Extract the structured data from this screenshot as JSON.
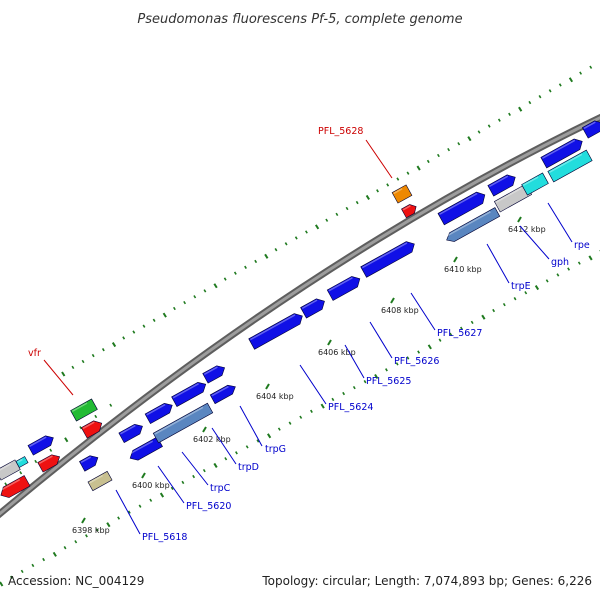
{
  "title": "Pseudomonas fluorescens Pf-5, complete genome",
  "footer": {
    "accession": "Accession: NC_004129",
    "summary": "Topology: circular; Length: 7,074,893 bp; Genes: 6,226"
  },
  "colors": {
    "backbone": "#8a8a8a",
    "tick": "#1f7a1f",
    "cds": "#1010e6",
    "trp_operon": "#5a86c0",
    "gene_label": "#0000cc",
    "highlight_label": "#cc0000",
    "rna": "#ee1111",
    "vfr": "#22bb33",
    "pfl5628": "#ee8800",
    "pseudo": "#c8c8c8",
    "khaki": "#c8c090",
    "cyan": "#22dddd"
  },
  "scale": {
    "ticks": [
      {
        "label": "6398 kbp"
      },
      {
        "label": "6400 kbp"
      },
      {
        "label": "6402 kbp"
      },
      {
        "label": "6404 kbp"
      },
      {
        "label": "6406 kbp"
      },
      {
        "label": "6408 kbp"
      },
      {
        "label": "6410 kbp"
      },
      {
        "label": "6412 kbp"
      }
    ]
  },
  "gene_labels": [
    {
      "text": "vfr",
      "highlight": true
    },
    {
      "text": "PFL_5628",
      "highlight": true
    },
    {
      "text": "PFL_5618",
      "highlight": false
    },
    {
      "text": "PFL_5620",
      "highlight": false
    },
    {
      "text": "trpC",
      "highlight": false
    },
    {
      "text": "trpD",
      "highlight": false
    },
    {
      "text": "trpG",
      "highlight": false
    },
    {
      "text": "PFL_5624",
      "highlight": false
    },
    {
      "text": "PFL_5625",
      "highlight": false
    },
    {
      "text": "PFL_5626",
      "highlight": false
    },
    {
      "text": "PFL_5627",
      "highlight": false
    },
    {
      "text": "trpE",
      "highlight": false
    },
    {
      "text": "gph",
      "highlight": false
    },
    {
      "text": "rpe",
      "highlight": false
    }
  ]
}
